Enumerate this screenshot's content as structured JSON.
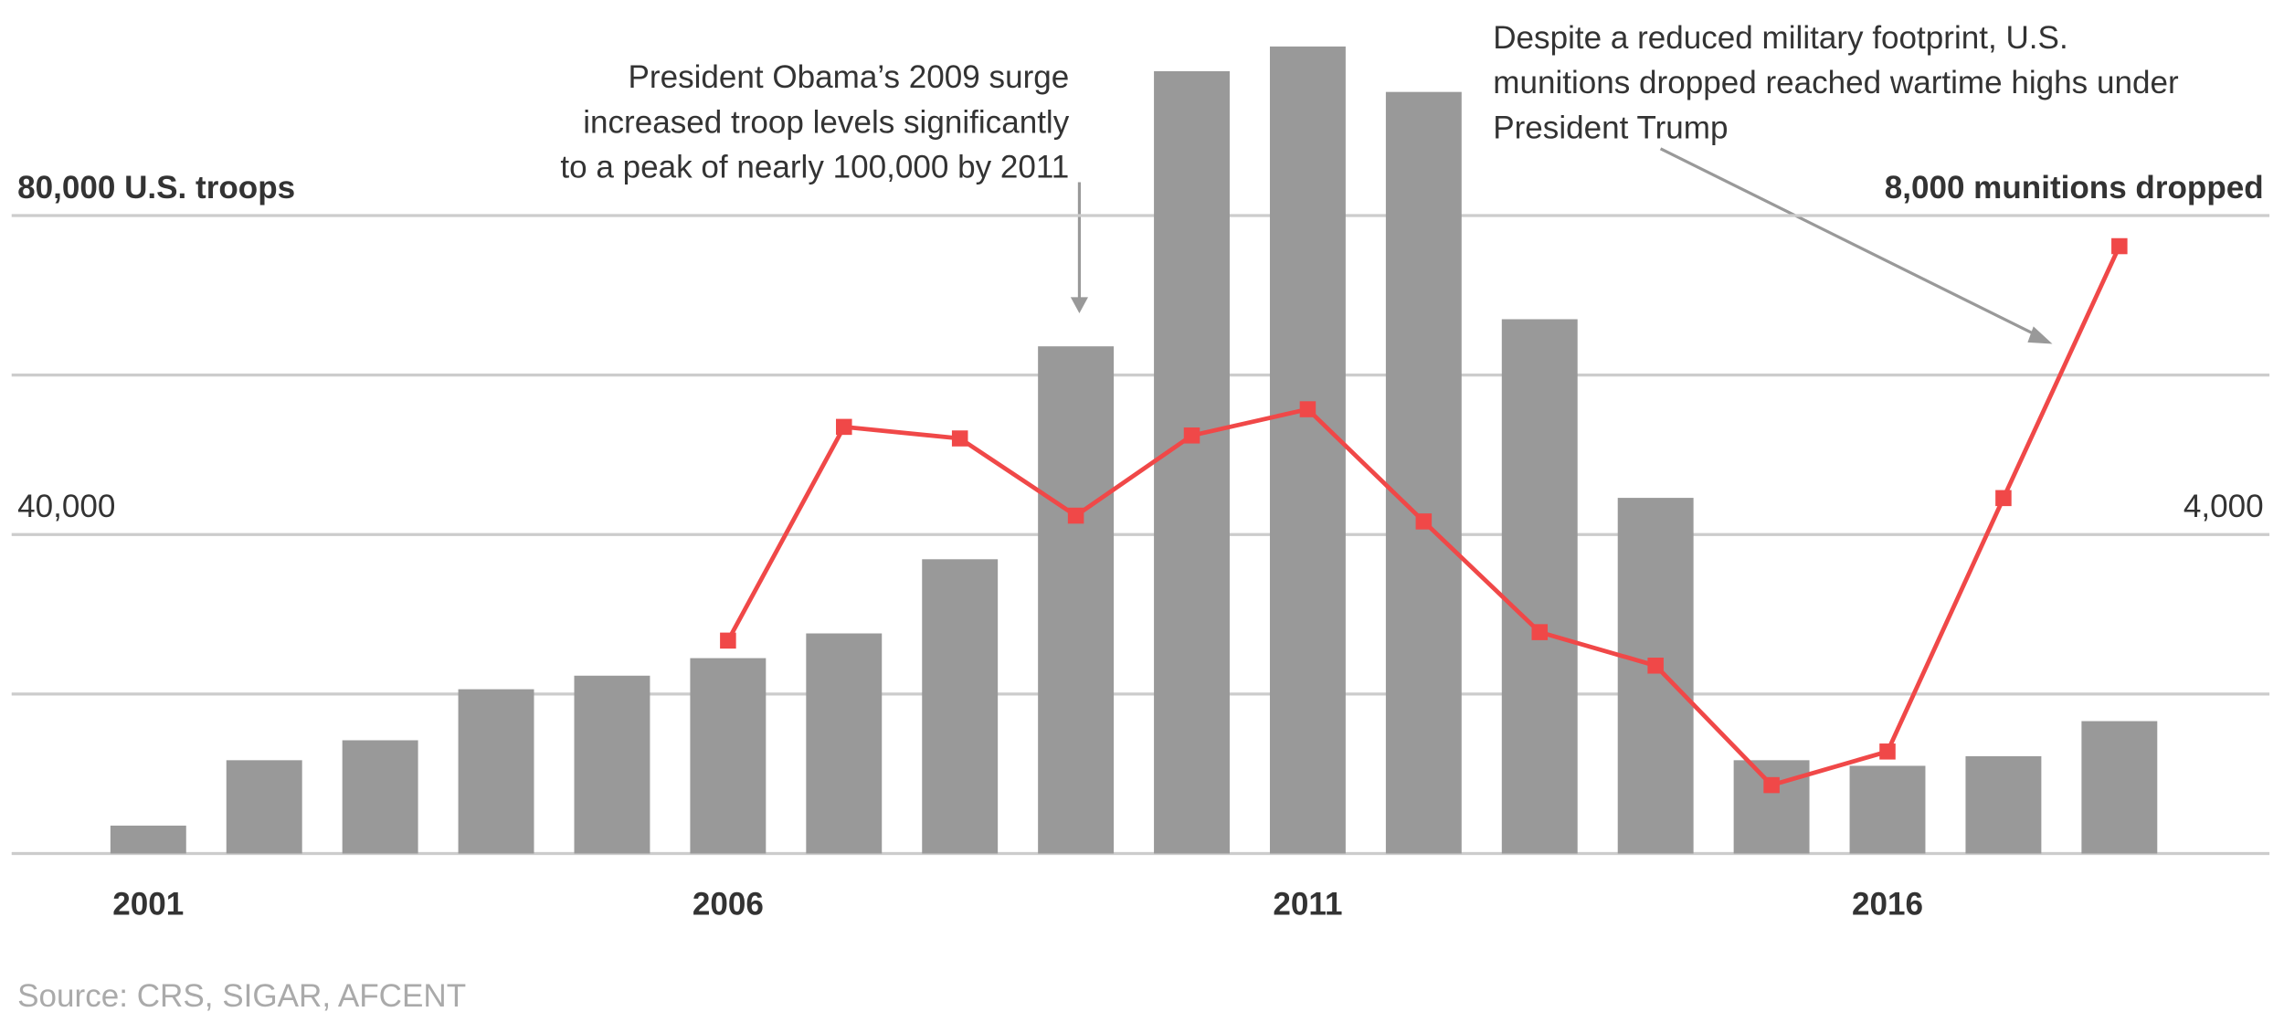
{
  "chart_data": {
    "type": "bar_line",
    "categories": [
      "2001",
      null,
      null,
      null,
      null,
      "2006",
      null,
      null,
      null,
      null,
      "2011",
      null,
      null,
      null,
      null,
      "2016",
      null,
      null
    ],
    "series": [
      {
        "type": "bar",
        "color": "#999999",
        "values": [
          3500,
          11700,
          14200,
          20600,
          22300,
          24500,
          27600,
          36900,
          63600,
          98100,
          101200,
          95500,
          67000,
          44600,
          11700,
          11000,
          12200,
          16600
        ]
      },
      {
        "type": "line",
        "axis": "y2",
        "color": "#f04848",
        "values": [
          null,
          null,
          null,
          null,
          null,
          2670,
          5350,
          5205,
          4237,
          5242,
          5571,
          4164,
          2776,
          2356,
          858,
          1279,
          4457,
          7616
        ]
      }
    ],
    "ylim": [
      0,
      105000
    ],
    "grid": [
      0,
      20000,
      40000,
      60000,
      80000
    ],
    "yticks": [
      {
        "value": 40000,
        "label": "40,000"
      },
      {
        "value": 80000,
        "label": "80,000 U.S. troops"
      }
    ],
    "y2lim": [
      0,
      10500
    ],
    "y2ticks": [
      {
        "value": 4000,
        "label": "4,000"
      },
      {
        "value": 8000,
        "label": "8,000 munitions dropped"
      }
    ],
    "annotations": [
      [
        "President Obama’s 2009 surge",
        "increased troop levels significantly",
        "to a peak of nearly 100,000 by 2011"
      ],
      [
        "Despite a reduced military footprint, U.S.",
        "munitions dropped reached wartime highs under",
        "President Trump"
      ]
    ],
    "source": "Source: CRS, SIGAR, AFCENT"
  }
}
